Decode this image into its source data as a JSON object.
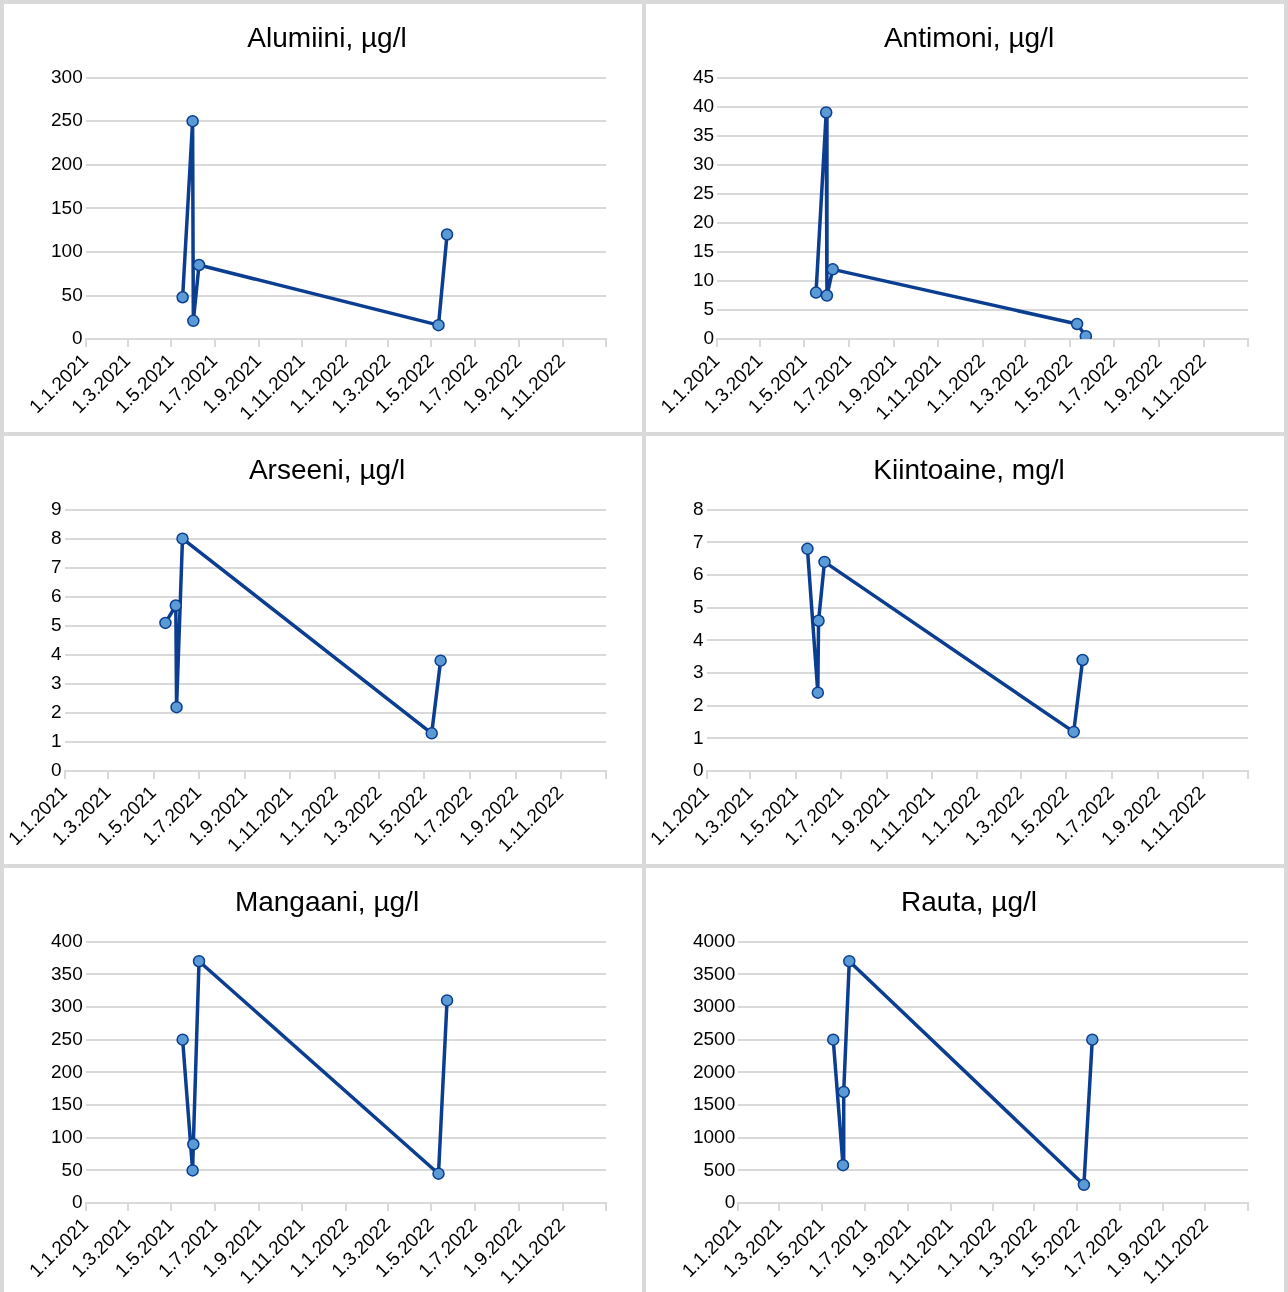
{
  "chart_data": [
    {
      "type": "line",
      "title": "Alumiini, µg/l",
      "x": [
        "2021-05-17",
        "2021-05-31",
        "2021-06-01",
        "2021-06-09",
        "2022-05-11",
        "2022-05-23"
      ],
      "series": [
        {
          "color": "#0b3d91",
          "values": [
            48,
            250,
            21,
            85,
            16,
            120
          ]
        }
      ],
      "xlim": [
        "2021-01-01",
        "2023-01-01"
      ],
      "xticks": [
        {
          "value": "2021-01-01",
          "label": "1.1.2021"
        },
        {
          "value": "2021-03-01",
          "label": "1.3.2021"
        },
        {
          "value": "2021-05-01",
          "label": "1.5.2021"
        },
        {
          "value": "2021-07-01",
          "label": "1.7.2021"
        },
        {
          "value": "2021-09-01",
          "label": "1.9.2021"
        },
        {
          "value": "2021-11-01",
          "label": "1.11.2021"
        },
        {
          "value": "2022-01-01",
          "label": "1.1.2022"
        },
        {
          "value": "2022-03-01",
          "label": "1.3.2022"
        },
        {
          "value": "2022-05-01",
          "label": "1.5.2022"
        },
        {
          "value": "2022-07-01",
          "label": "1.7.2022"
        },
        {
          "value": "2022-09-01",
          "label": "1.9.2022"
        },
        {
          "value": "2022-11-01",
          "label": "1.11.2022"
        },
        {
          "value": "2023-01-01",
          "label": null
        }
      ],
      "ylim": [
        0,
        300
      ],
      "yticks": [
        0,
        50,
        100,
        150,
        200,
        250,
        300
      ],
      "grid": "y",
      "marker": "circle",
      "legend": false
    },
    {
      "type": "line",
      "title": "Antimoni, µg/l",
      "x": [
        "2021-05-17",
        "2021-05-31",
        "2021-06-01",
        "2021-06-09",
        "2022-05-11",
        "2022-05-23"
      ],
      "series": [
        {
          "color": "#0b3d91",
          "values": [
            8,
            39,
            7.5,
            12,
            2.6,
            0.5
          ]
        }
      ],
      "xlim": [
        "2021-01-01",
        "2023-01-01"
      ],
      "xticks": [
        {
          "value": "2021-01-01",
          "label": "1.1.2021"
        },
        {
          "value": "2021-03-01",
          "label": "1.3.2021"
        },
        {
          "value": "2021-05-01",
          "label": "1.5.2021"
        },
        {
          "value": "2021-07-01",
          "label": "1.7.2021"
        },
        {
          "value": "2021-09-01",
          "label": "1.9.2021"
        },
        {
          "value": "2021-11-01",
          "label": "1.11.2021"
        },
        {
          "value": "2022-01-01",
          "label": "1.1.2022"
        },
        {
          "value": "2022-03-01",
          "label": "1.3.2022"
        },
        {
          "value": "2022-05-01",
          "label": "1.5.2022"
        },
        {
          "value": "2022-07-01",
          "label": "1.7.2022"
        },
        {
          "value": "2022-09-01",
          "label": "1.9.2022"
        },
        {
          "value": "2022-11-01",
          "label": "1.11.2022"
        },
        {
          "value": "2023-01-01",
          "label": null
        }
      ],
      "ylim": [
        0,
        45
      ],
      "yticks": [
        0,
        5,
        10,
        15,
        20,
        25,
        30,
        35,
        40,
        45
      ],
      "grid": "y",
      "marker": "circle",
      "legend": false
    },
    {
      "type": "line",
      "title": "Arseeni, µg/l",
      "x": [
        "2021-05-17",
        "2021-05-31",
        "2021-06-01",
        "2021-06-09",
        "2022-05-11",
        "2022-05-23"
      ],
      "series": [
        {
          "color": "#0b3d91",
          "values": [
            5.1,
            5.7,
            2.2,
            8,
            1.3,
            3.8
          ]
        }
      ],
      "xlim": [
        "2021-01-01",
        "2023-01-01"
      ],
      "xticks": [
        {
          "value": "2021-01-01",
          "label": "1.1.2021"
        },
        {
          "value": "2021-03-01",
          "label": "1.3.2021"
        },
        {
          "value": "2021-05-01",
          "label": "1.5.2021"
        },
        {
          "value": "2021-07-01",
          "label": "1.7.2021"
        },
        {
          "value": "2021-09-01",
          "label": "1.9.2021"
        },
        {
          "value": "2021-11-01",
          "label": "1.11.2021"
        },
        {
          "value": "2022-01-01",
          "label": "1.1.2022"
        },
        {
          "value": "2022-03-01",
          "label": "1.3.2022"
        },
        {
          "value": "2022-05-01",
          "label": "1.5.2022"
        },
        {
          "value": "2022-07-01",
          "label": "1.7.2022"
        },
        {
          "value": "2022-09-01",
          "label": "1.9.2022"
        },
        {
          "value": "2022-11-01",
          "label": "1.11.2022"
        },
        {
          "value": "2023-01-01",
          "label": null
        }
      ],
      "ylim": [
        0,
        9
      ],
      "yticks": [
        0,
        1,
        2,
        3,
        4,
        5,
        6,
        7,
        8,
        9
      ],
      "grid": "y",
      "marker": "circle",
      "legend": false
    },
    {
      "type": "line",
      "title": "Kiintoaine, mg/l",
      "x": [
        "2021-05-17",
        "2021-05-31",
        "2021-06-01",
        "2021-06-09",
        "2022-05-11",
        "2022-05-23"
      ],
      "series": [
        {
          "color": "#0b3d91",
          "values": [
            6.8,
            2.4,
            4.6,
            6.4,
            1.2,
            3.4
          ]
        }
      ],
      "xlim": [
        "2021-01-01",
        "2023-01-01"
      ],
      "xticks": [
        {
          "value": "2021-01-01",
          "label": "1.1.2021"
        },
        {
          "value": "2021-03-01",
          "label": "1.3.2021"
        },
        {
          "value": "2021-05-01",
          "label": "1.5.2021"
        },
        {
          "value": "2021-07-01",
          "label": "1.7.2021"
        },
        {
          "value": "2021-09-01",
          "label": "1.9.2021"
        },
        {
          "value": "2021-11-01",
          "label": "1.11.2021"
        },
        {
          "value": "2022-01-01",
          "label": "1.1.2022"
        },
        {
          "value": "2022-03-01",
          "label": "1.3.2022"
        },
        {
          "value": "2022-05-01",
          "label": "1.5.2022"
        },
        {
          "value": "2022-07-01",
          "label": "1.7.2022"
        },
        {
          "value": "2022-09-01",
          "label": "1.9.2022"
        },
        {
          "value": "2022-11-01",
          "label": "1.11.2022"
        },
        {
          "value": "2023-01-01",
          "label": null
        }
      ],
      "ylim": [
        0,
        8
      ],
      "yticks": [
        0,
        1,
        2,
        3,
        4,
        5,
        6,
        7,
        8
      ],
      "grid": "y",
      "marker": "circle",
      "legend": false
    },
    {
      "type": "line",
      "title": "Mangaani, µg/l",
      "x": [
        "2021-05-17",
        "2021-05-31",
        "2021-06-01",
        "2021-06-09",
        "2022-05-11",
        "2022-05-23"
      ],
      "series": [
        {
          "color": "#0b3d91",
          "values": [
            250,
            50,
            90,
            370,
            45,
            310
          ]
        }
      ],
      "xlim": [
        "2021-01-01",
        "2023-01-01"
      ],
      "xticks": [
        {
          "value": "2021-01-01",
          "label": "1.1.2021"
        },
        {
          "value": "2021-03-01",
          "label": "1.3.2021"
        },
        {
          "value": "2021-05-01",
          "label": "1.5.2021"
        },
        {
          "value": "2021-07-01",
          "label": "1.7.2021"
        },
        {
          "value": "2021-09-01",
          "label": "1.9.2021"
        },
        {
          "value": "2021-11-01",
          "label": "1.11.2021"
        },
        {
          "value": "2022-01-01",
          "label": "1.1.2022"
        },
        {
          "value": "2022-03-01",
          "label": "1.3.2022"
        },
        {
          "value": "2022-05-01",
          "label": "1.5.2022"
        },
        {
          "value": "2022-07-01",
          "label": "1.7.2022"
        },
        {
          "value": "2022-09-01",
          "label": "1.9.2022"
        },
        {
          "value": "2022-11-01",
          "label": "1.11.2022"
        },
        {
          "value": "2023-01-01",
          "label": null
        }
      ],
      "ylim": [
        0,
        400
      ],
      "yticks": [
        0,
        50,
        100,
        150,
        200,
        250,
        300,
        350,
        400
      ],
      "grid": "y",
      "marker": "circle",
      "legend": false
    },
    {
      "type": "line",
      "title": "Rauta, µg/l",
      "x": [
        "2021-05-17",
        "2021-05-31",
        "2021-06-01",
        "2021-06-09",
        "2022-05-11",
        "2022-05-23"
      ],
      "series": [
        {
          "color": "#0b3d91",
          "values": [
            2500,
            580,
            1700,
            3700,
            280,
            2500
          ]
        }
      ],
      "xlim": [
        "2021-01-01",
        "2023-01-01"
      ],
      "xticks": [
        {
          "value": "2021-01-01",
          "label": "1.1.2021"
        },
        {
          "value": "2021-03-01",
          "label": "1.3.2021"
        },
        {
          "value": "2021-05-01",
          "label": "1.5.2021"
        },
        {
          "value": "2021-07-01",
          "label": "1.7.2021"
        },
        {
          "value": "2021-09-01",
          "label": "1.9.2021"
        },
        {
          "value": "2021-11-01",
          "label": "1.11.2021"
        },
        {
          "value": "2022-01-01",
          "label": "1.1.2022"
        },
        {
          "value": "2022-03-01",
          "label": "1.3.2022"
        },
        {
          "value": "2022-05-01",
          "label": "1.5.2022"
        },
        {
          "value": "2022-07-01",
          "label": "1.7.2022"
        },
        {
          "value": "2022-09-01",
          "label": "1.9.2022"
        },
        {
          "value": "2022-11-01",
          "label": "1.11.2022"
        },
        {
          "value": "2023-01-01",
          "label": null
        }
      ],
      "ylim": [
        0,
        4000
      ],
      "yticks": [
        0,
        500,
        1000,
        1500,
        2000,
        2500,
        3000,
        3500,
        4000
      ],
      "grid": "y",
      "marker": "circle",
      "legend": false
    }
  ]
}
